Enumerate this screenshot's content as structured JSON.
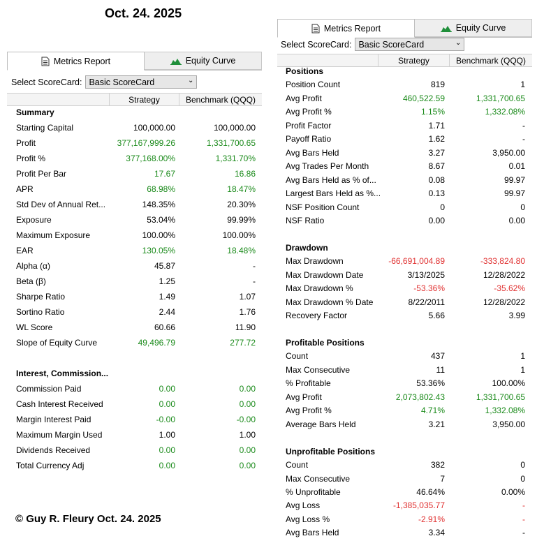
{
  "top_heading": "Oct. 24. 2025",
  "copyright": "© Guy R. Fleury Oct. 24. 2025",
  "tabs": {
    "metrics": "Metrics Report",
    "equity": "Equity Curve"
  },
  "select_label": "Select ScoreCard:",
  "scorecard_value": "Basic ScoreCard",
  "columns": {
    "strategy": "Strategy",
    "benchmark": "Benchmark (QQQ)"
  },
  "colors": {
    "green": "#1a8a1a",
    "red": "#e03030"
  },
  "left_rows": [
    {
      "label": "Summary",
      "section": true
    },
    {
      "label": "Starting Capital",
      "s": "100,000.00",
      "b": "100,000.00"
    },
    {
      "label": "Profit",
      "s": "377,167,999.26",
      "b": "1,331,700.65",
      "sc": "green",
      "bc": "green"
    },
    {
      "label": "Profit %",
      "s": "377,168.00%",
      "b": "1,331.70%",
      "sc": "green",
      "bc": "green"
    },
    {
      "label": "Profit Per Bar",
      "s": "17.67",
      "b": "16.86",
      "sc": "green",
      "bc": "green"
    },
    {
      "label": "APR",
      "s": "68.98%",
      "b": "18.47%",
      "sc": "green",
      "bc": "green"
    },
    {
      "label": "Std Dev of Annual Ret...",
      "s": "148.35%",
      "b": "20.30%"
    },
    {
      "label": "Exposure",
      "s": "53.04%",
      "b": "99.99%"
    },
    {
      "label": "Maximum Exposure",
      "s": "100.00%",
      "b": "100.00%"
    },
    {
      "label": "EAR",
      "s": "130.05%",
      "b": "18.48%",
      "sc": "green",
      "bc": "green"
    },
    {
      "label": "Alpha (α)",
      "s": "45.87",
      "b": "-"
    },
    {
      "label": "Beta (β)",
      "s": "1.25",
      "b": "-"
    },
    {
      "label": "Sharpe Ratio",
      "s": "1.49",
      "b": "1.07"
    },
    {
      "label": "Sortino Ratio",
      "s": "2.44",
      "b": "1.76"
    },
    {
      "label": "WL Score",
      "s": "60.66",
      "b": "11.90"
    },
    {
      "label": "Slope of Equity Curve",
      "s": "49,496.79",
      "b": "277.72",
      "sc": "green",
      "bc": "green"
    },
    {
      "label": "",
      "blank": true
    },
    {
      "label": "Interest, Commission...",
      "section": true
    },
    {
      "label": "Commission Paid",
      "s": "0.00",
      "b": "0.00",
      "sc": "green",
      "bc": "green"
    },
    {
      "label": "Cash Interest Received",
      "s": "0.00",
      "b": "0.00",
      "sc": "green",
      "bc": "green"
    },
    {
      "label": "Margin Interest Paid",
      "s": "-0.00",
      "b": "-0.00",
      "sc": "green",
      "bc": "green"
    },
    {
      "label": "Maximum Margin Used",
      "s": "1.00",
      "b": "1.00"
    },
    {
      "label": "Dividends Received",
      "s": "0.00",
      "b": "0.00",
      "sc": "green",
      "bc": "green"
    },
    {
      "label": "Total Currency Adj",
      "s": "0.00",
      "b": "0.00",
      "sc": "green",
      "bc": "green"
    }
  ],
  "right_rows": [
    {
      "label": "Positions",
      "section": true
    },
    {
      "label": "Position Count",
      "s": "819",
      "b": "1"
    },
    {
      "label": "Avg Profit",
      "s": "460,522.59",
      "b": "1,331,700.65",
      "sc": "green",
      "bc": "green"
    },
    {
      "label": "Avg Profit %",
      "s": "1.15%",
      "b": "1,332.08%",
      "sc": "green",
      "bc": "green"
    },
    {
      "label": "Profit Factor",
      "s": "1.71",
      "b": "-"
    },
    {
      "label": "Payoff Ratio",
      "s": "1.62",
      "b": "-"
    },
    {
      "label": "Avg Bars Held",
      "s": "3.27",
      "b": "3,950.00"
    },
    {
      "label": "Avg Trades Per Month",
      "s": "8.67",
      "b": "0.01"
    },
    {
      "label": "Avg Bars Held as % of...",
      "s": "0.08",
      "b": "99.97"
    },
    {
      "label": "Largest Bars Held as %...",
      "s": "0.13",
      "b": "99.97"
    },
    {
      "label": "NSF Position Count",
      "s": "0",
      "b": "0"
    },
    {
      "label": "NSF Ratio",
      "s": "0.00",
      "b": "0.00"
    },
    {
      "label": "",
      "blank": true
    },
    {
      "label": "Drawdown",
      "section": true
    },
    {
      "label": "Max Drawdown",
      "s": "-66,691,004.89",
      "b": "-333,824.80",
      "sc": "red",
      "bc": "red"
    },
    {
      "label": "Max Drawdown Date",
      "s": "3/13/2025",
      "b": "12/28/2022"
    },
    {
      "label": "Max Drawdown %",
      "s": "-53.36%",
      "b": "-35.62%",
      "sc": "red",
      "bc": "red"
    },
    {
      "label": "Max Drawdown % Date",
      "s": "8/22/2011",
      "b": "12/28/2022"
    },
    {
      "label": "Recovery Factor",
      "s": "5.66",
      "b": "3.99"
    },
    {
      "label": "",
      "blank": true
    },
    {
      "label": "Profitable Positions",
      "section": true
    },
    {
      "label": "Count",
      "s": "437",
      "b": "1"
    },
    {
      "label": "Max Consecutive",
      "s": "11",
      "b": "1"
    },
    {
      "label": "% Profitable",
      "s": "53.36%",
      "b": "100.00%"
    },
    {
      "label": "Avg Profit",
      "s": "2,073,802.43",
      "b": "1,331,700.65",
      "sc": "green",
      "bc": "green"
    },
    {
      "label": "Avg Profit %",
      "s": "4.71%",
      "b": "1,332.08%",
      "sc": "green",
      "bc": "green"
    },
    {
      "label": "Average Bars Held",
      "s": "3.21",
      "b": "3,950.00"
    },
    {
      "label": "",
      "blank": true
    },
    {
      "label": "Unprofitable Positions",
      "section": true
    },
    {
      "label": "Count",
      "s": "382",
      "b": "0"
    },
    {
      "label": "Max Consecutive",
      "s": "7",
      "b": "0"
    },
    {
      "label": "% Unprofitable",
      "s": "46.64%",
      "b": "0.00%"
    },
    {
      "label": "Avg Loss",
      "s": "-1,385,035.77",
      "b": "-",
      "sc": "red",
      "bc": "red"
    },
    {
      "label": "Avg Loss %",
      "s": "-2.91%",
      "b": "-",
      "sc": "red",
      "bc": "red"
    },
    {
      "label": "Avg Bars Held",
      "s": "3.34",
      "b": "-"
    }
  ]
}
